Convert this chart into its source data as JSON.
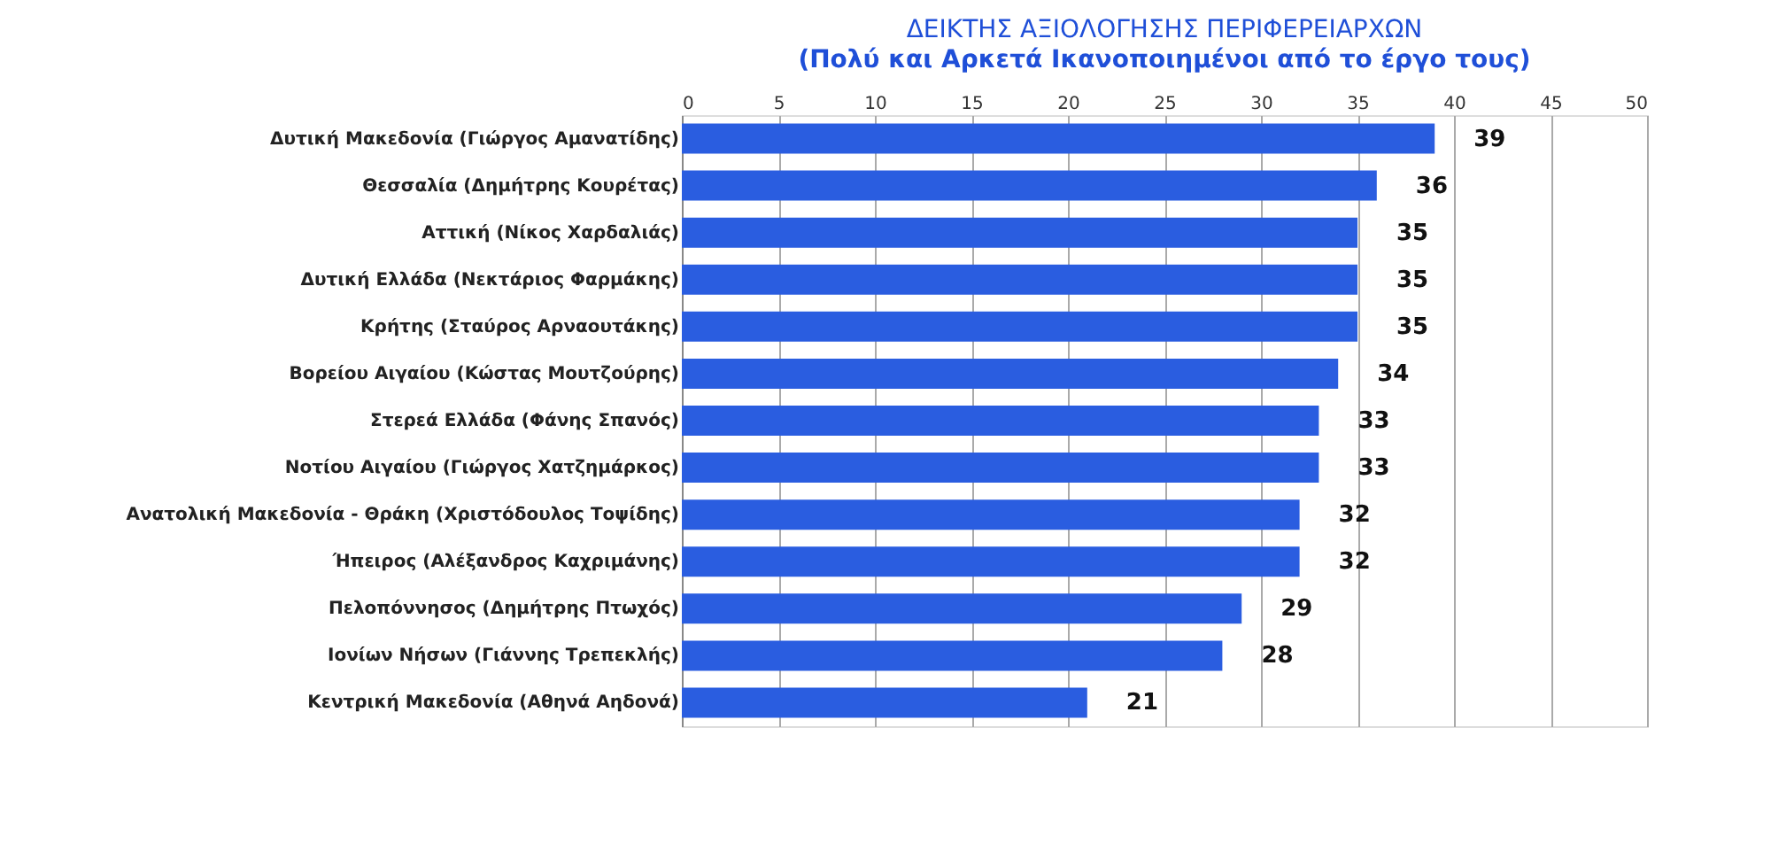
{
  "chart_data": {
    "type": "bar",
    "orientation": "horizontal",
    "title": "ΔΕΙΚΤΗΣ ΑΞΙΟΛΟΓΗΣΗΣ ΠΕΡΙΦΕΡΕΙΑΡΧΩΝ",
    "subtitle": "(Πολύ και Αρκετά Ικανοποιημένοι από το έργο τους)",
    "categories": [
      "Δυτική Μακεδονία (Γιώργος Αμανατίδης)",
      "Θεσσαλία (Δημήτρης Κουρέτας)",
      "Αττική (Νίκος Χαρδαλιάς)",
      "Δυτική Ελλάδα (Νεκτάριος Φαρμάκης)",
      "Κρήτης (Σταύρος Αρναουτάκης)",
      "Βορείου Αιγαίου (Κώστας Μουτζούρης)",
      "Στερεά Ελλάδα (Φάνης Σπανός)",
      "Νοτίου Αιγαίου (Γιώργος Χατζημάρκος)",
      "Ανατολική Μακεδονία - Θράκη (Χριστόδουλος Τοψίδης)",
      "Ήπειρος (Αλέξανδρος Καχριμάνης)",
      "Πελοπόννησος (Δημήτρης Πτωχός)",
      "Ιονίων Νήσων (Γιάννης Τρεπεκλής)",
      "Κεντρική Μακεδονία (Αθηνά Αηδονά)"
    ],
    "values": [
      39,
      36,
      35,
      35,
      35,
      34,
      33,
      33,
      32,
      32,
      29,
      28,
      21
    ],
    "color": "#2a5de0",
    "xlim": [
      0,
      50
    ],
    "xticks": [
      0,
      5,
      10,
      15,
      20,
      25,
      30,
      35,
      40,
      45,
      50
    ],
    "grid": "x",
    "data_labels": true
  }
}
